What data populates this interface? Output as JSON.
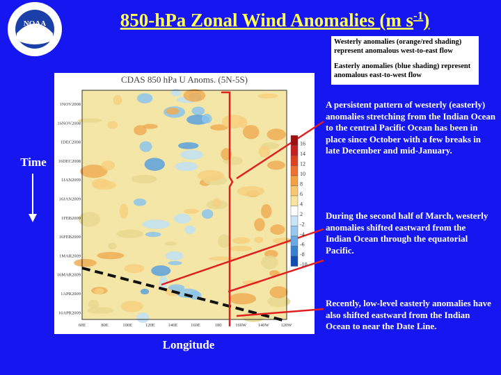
{
  "logo": "NOAA",
  "title": {
    "text": "850-hPa Zonal Wind Anomalies (m s",
    "superscript": "-1",
    "end": ")"
  },
  "legend_box": {
    "westerly": "Westerly anomalies (orange/red shading) represent anomalous west-to-east flow",
    "easterly": "Easterly anomalies (blue shading) represent anomalous east-to-west flow"
  },
  "annotations": [
    "A persistent pattern of westerly (easterly) anomalies stretching from the Indian Ocean to the central Pacific Ocean has been in place since October with a few breaks in late December and mid-January.",
    "During the second half of March, westerly anomalies shifted eastward from the Indian Ocean through the equatorial Pacific.",
    "Recently, low-level easterly anomalies have also shifted eastward from the Indian Ocean to near the Date Line."
  ],
  "axis_labels": {
    "time": "Time",
    "longitude": "Longitude"
  },
  "plot": {
    "title": "CDAS 850 hPa U Anoms. (5N-5S)",
    "y_labels": [
      "1NOV2008",
      "16NOV2008",
      "1DEC2008",
      "16DEC2008",
      "1JAN2009",
      "16JAN2009",
      "1FEB2009",
      "16FEB2009",
      "1MAR2009",
      "16MAR2009",
      "1APR2009",
      "16APR2009"
    ],
    "x_labels": [
      "60E",
      "80E",
      "100E",
      "120E",
      "140E",
      "160E",
      "180",
      "160W",
      "140W",
      "120W"
    ],
    "colorbar_labels": [
      "16",
      "14",
      "12",
      "10",
      "8",
      "6",
      "4",
      "2",
      "-2",
      "-4",
      "-6",
      "-8",
      "-10"
    ]
  }
}
